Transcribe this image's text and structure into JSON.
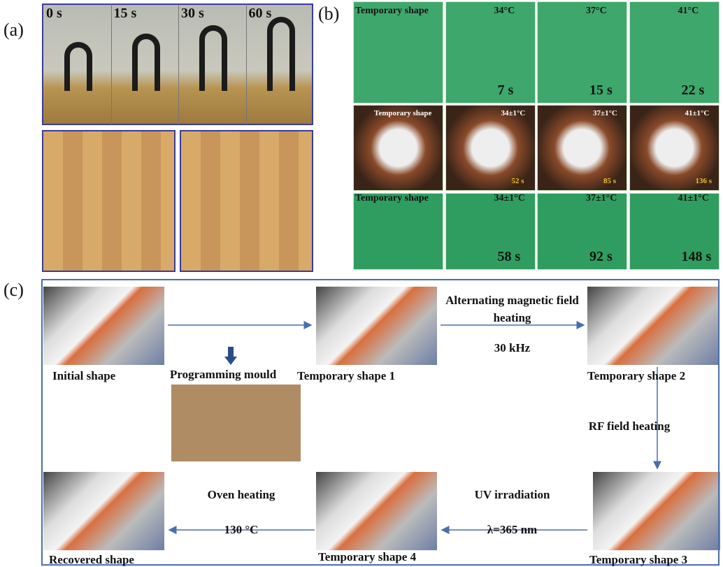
{
  "panel_a": {
    "label": "(a)",
    "times": [
      "0 s",
      "15 s",
      "30 s",
      "60 s"
    ]
  },
  "panel_b": {
    "label": "(b)",
    "rows": [
      {
        "labels": [
          "Temporary shape",
          "34°C",
          "37°C",
          "41°C"
        ],
        "times": [
          "7 s",
          "15 s",
          "22 s"
        ]
      },
      {
        "labels": [
          "Temporary shape",
          "34±1°C",
          "37±1°C",
          "41±1°C"
        ],
        "times": [
          "52 s",
          "85 s",
          "136 s"
        ]
      },
      {
        "labels": [
          "Temporary shape",
          "34±1°C",
          "37±1°C",
          "41±1°C"
        ],
        "times": [
          "58 s",
          "92 s",
          "148 s"
        ]
      }
    ]
  },
  "panel_c": {
    "label": "(c)",
    "shapes": [
      "Initial shape",
      "Temporary shape 1",
      "Temporary shape 2",
      "Temporary shape 3",
      "Temporary shape 4",
      "Recovered shape"
    ],
    "mould": "Programming mould",
    "steps": [
      {
        "name": "Alternating magnetic field heating",
        "param": "30 kHz"
      },
      {
        "name": "RF field heating"
      },
      {
        "name": "UV irradiation",
        "param": "λ=365 nm"
      },
      {
        "name": "Oven heating",
        "param": "130 °C"
      }
    ]
  }
}
